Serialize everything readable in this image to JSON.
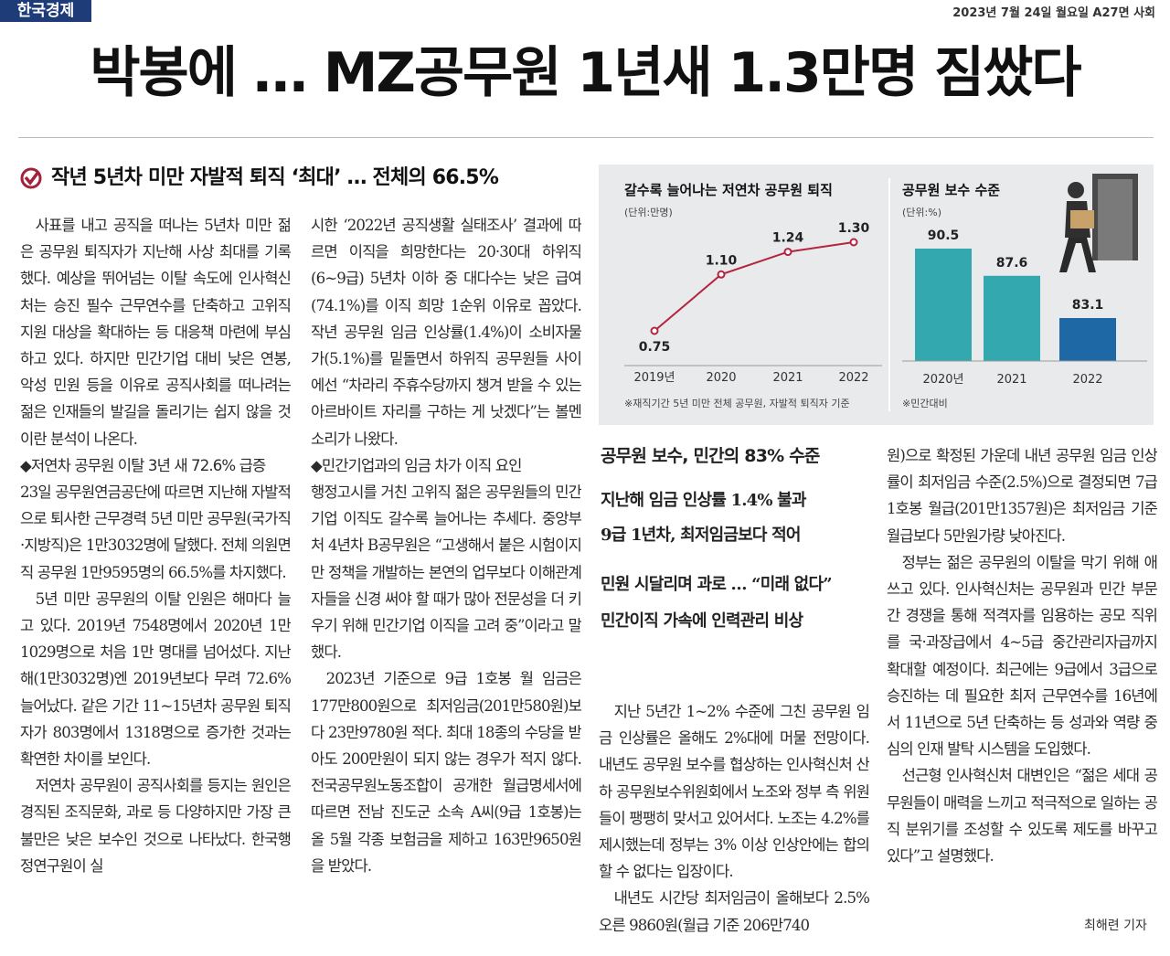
{
  "header": {
    "logo": "한국경제",
    "dateline": "2023년 7월 24일 월요일 A27면 사회"
  },
  "headline": "박봉에 … MZ공무원 1년새 1.3만명 짐쌌다",
  "subheadline": "작년 5년차 미만 자발적 퇴직 ‘최대’ … 전체의 66.5%",
  "columns": [
    [
      "사표를 내고 공직을 떠나는 5년차 미만 젊은 공무원 퇴직자가 지난해 사상 최대를 기록했다. 예상을 뛰어넘는 이탈 속도에 인사혁신처는 승진 필수 근무연수를 단축하고 고위직 지원 대상을 확대하는 등 대응책 마련에 부심하고 있다. 하지만 민간기업 대비 낮은 연봉, 악성 민원 등을 이유로 공직사회를 떠나려는 젊은 인재들의 발길을 돌리기는 쉽지 않을 것이란 분석이 나온다.",
      "◆저연차 공무원 이탈 3년 새 72.6% 급증",
      "23일 공무원연금공단에 따르면 지난해 자발적으로 퇴사한 근무경력 5년 미만 공무원(국가직·지방직)은 1만3032명에 달했다. 전체 의원면직 공무원 1만9595명의 66.5%를 차지했다.",
      "5년 미만 공무원의 이탈 인원은 해마다 늘고 있다. 2019년 7548명에서 2020년 1만1029명으로 처음 1만 명대를 넘어섰다. 지난해(1만3032명)엔 2019년보다 무려 72.6% 늘어났다. 같은 기간 11~15년차 공무원 퇴직자가 803명에서 1318명으로 증가한 것과는 확연한 차이를 보인다.",
      "저연차 공무원이 공직사회를 등지는 원인은 경직된 조직문화, 과로 등 다양하지만 가장 큰 불만은 낮은 보수인 것으로 나타났다. 한국행정연구원이 실"
    ],
    [
      "시한 ‘2022년 공직생활 실태조사’ 결과에 따르면 이직을 희망한다는 20·30대 하위직(6~9급) 5년차 이하 중 대다수는 낮은 급여(74.1%)를 이직 희망 1순위 이유로 꼽았다. 작년 공무원 임금 인상률(1.4%)이 소비자물가(5.1%)를 밑돌면서 하위직 공무원들 사이에선 “차라리 주휴수당까지 챙겨 받을 수 있는 아르바이트 자리를 구하는 게 낫겠다”는 볼멘소리가 나왔다.",
      "◆민간기업과의 임금 차가 이직 요인",
      "행정고시를 거친 고위직 젊은 공무원들의 민간기업 이직도 갈수록 늘어나는 추세다. 중앙부처 4년차 B공무원은 “고생해서 붙은 시험이지만 정책을 개발하는 본연의 업무보다 이해관계자들을 신경 써야 할 때가 많아 전문성을 더 키우기 위해 민간기업 이직을 고려 중”이라고 말했다.",
      "2023년 기준으로 9급 1호봉 월 임금은 177만800원으로 최저임금(201만580원)보다 23만9780원 적다. 최대 18종의 수당을 받아도 200만원이 되지 않는 경우가 적지 않다. 전국공무원노동조합이 공개한 월급명세서에 따르면 전남 진도군 소속 A씨(9급 1호봉)는 올 5월 각종 보험금을 제하고 163만9650원을 받았다."
    ],
    [
      "지난 5년간 1~2% 수준에 그친 공무원 임금 인상률은 올해도 2%대에 머물 전망이다. 내년도 공무원 보수를 협상하는 인사혁신처 산하 공무원보수위원회에서 노조와 정부 측 위원들이 팽팽히 맞서고 있어서다. 노조는 4.2%를 제시했는데 정부는 3% 이상 인상안에는 합의할 수 없다는 입장이다.",
      "내년도 시간당 최저임금이 올해보다 2.5% 오른 9860원(월급 기준 206만740"
    ],
    [
      "원)으로 확정된 가운데 내년 공무원 임금 인상률이 최저임금 수준(2.5%)으로 결정되면 7급 1호봉 월급(201만1357원)은 최저임금 기준 월급보다 5만원가량 낮아진다.",
      "정부는 젊은 공무원의 이탈을 막기 위해 애쓰고 있다. 인사혁신처는 공무원과 민간 부문 간 경쟁을 통해 적격자를 임용하는 공모 직위를 국·과장급에서 4~5급 중간관리자급까지 확대할 예정이다. 최근에는 9급에서 3급으로 승진하는 데 필요한 최저 근무연수를 16년에서 11년으로 5년 단축하는 등 성과와 역량 중심의 인재 발탁 시스템을 도입했다.",
      "선근형 인사혁신처 대변인은 “젊은 세대 공무원들이 매력을 느끼고 적극적으로 일하는 공직 분위기를 조성할 수 있도록 제도를 바꾸고 있다”고 설명했다."
    ]
  ],
  "byline": "최해련 기자",
  "sidebar": {
    "title": "공무원 보수, 민간의 83% 수준",
    "decks": [
      "지난해 임금 인상률 1.4% 불과",
      "9급 1년차, 최저임금보다 적어",
      "민원 시달리며 과로 … “미래 없다”",
      "민간이직 가속에 인력관리 비상"
    ]
  },
  "chart_data": [
    {
      "type": "line",
      "title": "갈수록 늘어나는 저연차 공무원 퇴직",
      "unit_label": "(단위:만명)",
      "categories": [
        "2019년",
        "2020",
        "2021",
        "2022"
      ],
      "values": [
        0.75,
        1.1,
        1.24,
        1.3
      ],
      "value_labels": [
        "0.75",
        "1.10",
        "1.24",
        "1.30"
      ],
      "color": "#b3243f",
      "note": "※재직기간 5년 미만 전체 공무원, 자발적 퇴직자 기준"
    },
    {
      "type": "bar",
      "title": "공무원 보수 수준",
      "unit_label": "(단위:%)",
      "categories": [
        "2020년",
        "2021",
        "2022"
      ],
      "values": [
        90.5,
        87.6,
        83.1
      ],
      "colors": [
        "#33a8ae",
        "#33a8ae",
        "#1f68a6"
      ],
      "note": "※민간대비"
    }
  ]
}
